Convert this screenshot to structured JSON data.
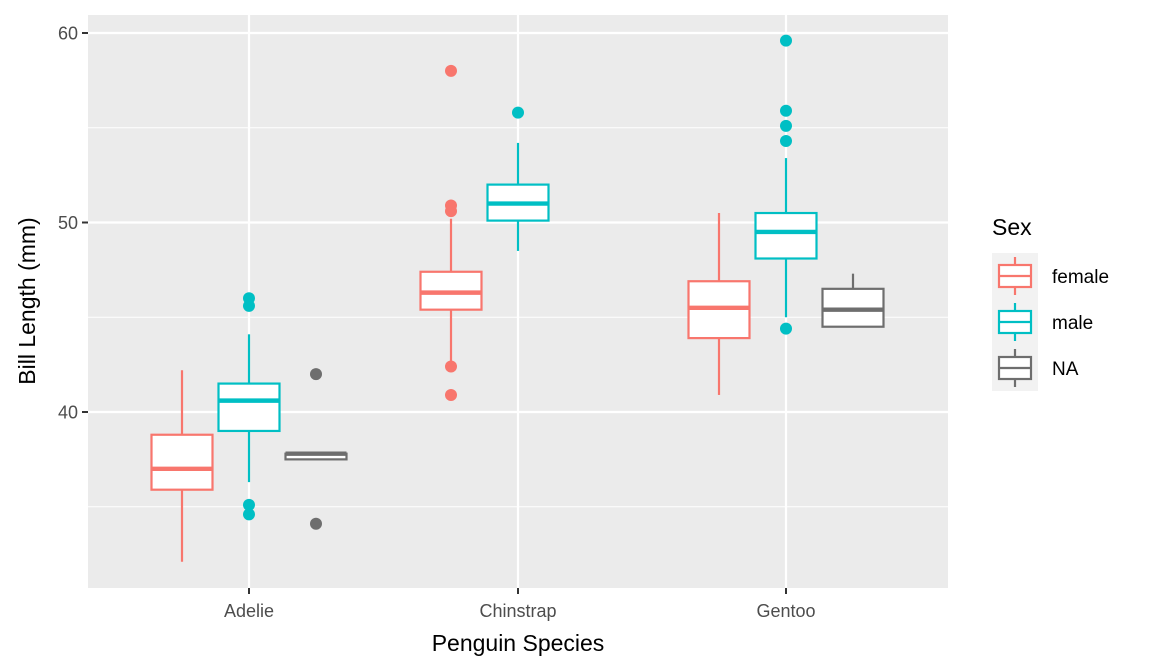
{
  "chart_data": {
    "type": "boxplot",
    "title": "",
    "xlabel": "Penguin Species",
    "ylabel": "Bill Length (mm)",
    "categories": [
      "Adelie",
      "Chinstrap",
      "Gentoo"
    ],
    "ylim": [
      31.2,
      61.0
    ],
    "yticks": [
      40,
      50,
      60
    ],
    "yminor": [
      35,
      45,
      55
    ],
    "grid": true,
    "legend": {
      "title": "Sex",
      "position": "right",
      "entries": [
        "female",
        "male",
        "NA"
      ]
    },
    "series": [
      {
        "name": "female",
        "color": "#F8766D",
        "boxes": [
          {
            "category": "Adelie",
            "lower_whisker": 32.1,
            "q1": 35.9,
            "median": 37.0,
            "q3": 38.8,
            "upper_whisker": 42.2,
            "outliers": []
          },
          {
            "category": "Chinstrap",
            "lower_whisker": 42.5,
            "q1": 45.4,
            "median": 46.3,
            "q3": 47.4,
            "upper_whisker": 50.2,
            "outliers": [
              58.0,
              50.9,
              50.6,
              42.4,
              40.9
            ]
          },
          {
            "category": "Gentoo",
            "lower_whisker": 40.9,
            "q1": 43.9,
            "median": 45.5,
            "q3": 46.9,
            "upper_whisker": 50.5,
            "outliers": []
          }
        ]
      },
      {
        "name": "male",
        "color": "#00BFC4",
        "boxes": [
          {
            "category": "Adelie",
            "lower_whisker": 36.3,
            "q1": 39.0,
            "median": 40.6,
            "q3": 41.5,
            "upper_whisker": 44.1,
            "outliers": [
              46.0,
              45.6,
              35.1,
              34.6
            ]
          },
          {
            "category": "Chinstrap",
            "lower_whisker": 48.5,
            "q1": 50.1,
            "median": 51.0,
            "q3": 52.0,
            "upper_whisker": 54.2,
            "outliers": [
              55.8
            ]
          },
          {
            "category": "Gentoo",
            "lower_whisker": 45.0,
            "q1": 48.1,
            "median": 49.5,
            "q3": 50.5,
            "upper_whisker": 53.4,
            "outliers": [
              59.6,
              55.9,
              55.1,
              54.3,
              44.4
            ]
          }
        ]
      },
      {
        "name": "NA",
        "color": "#6E6E6E",
        "boxes": [
          {
            "category": "Adelie",
            "lower_whisker": 37.5,
            "q1": 37.5,
            "median": 37.8,
            "q3": 37.8,
            "upper_whisker": 37.8,
            "outliers": [
              42.0,
              34.1
            ]
          },
          {
            "category": "Gentoo",
            "lower_whisker": 44.5,
            "q1": 44.5,
            "median": 45.4,
            "q3": 46.5,
            "upper_whisker": 47.3,
            "outliers": []
          }
        ]
      }
    ]
  }
}
